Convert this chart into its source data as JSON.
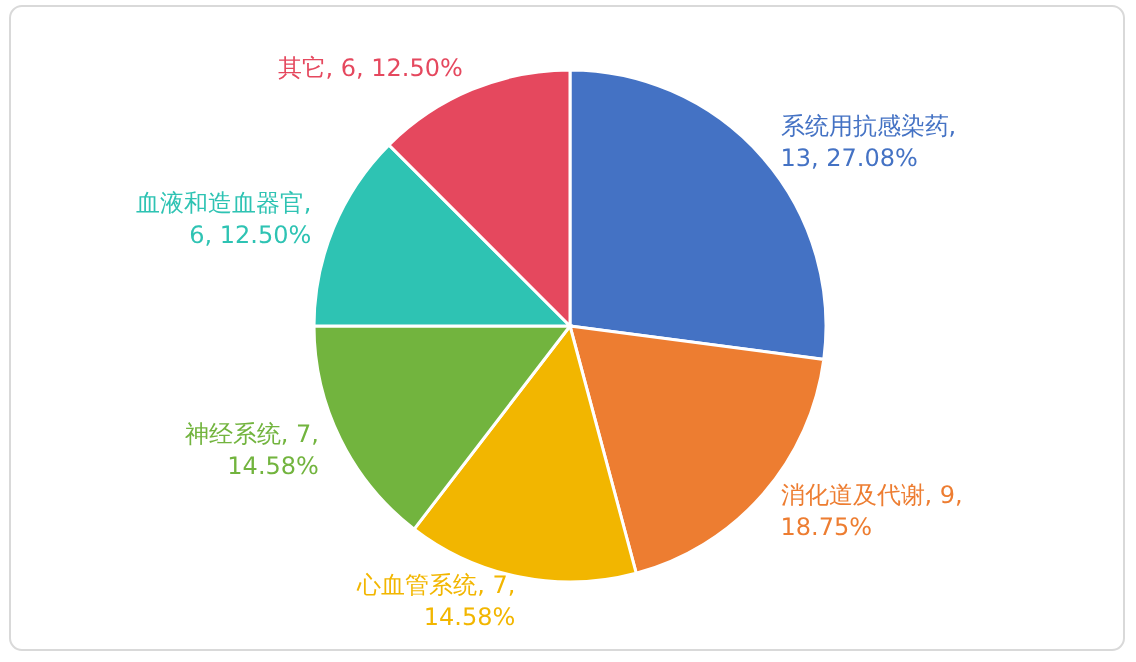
{
  "chart_data": {
    "type": "pie",
    "categories": [
      "系统用抗感染药",
      "消化道及代谢",
      "心血管系统",
      "神经系统",
      "血液和造血器官",
      "其它"
    ],
    "values": [
      13,
      9,
      7,
      7,
      6,
      6
    ],
    "colors": [
      "#4472c4",
      "#ed7d31",
      "#f2b600",
      "#72b43e",
      "#2ec3b3",
      "#e5485e"
    ],
    "value_labels": [
      ", 13, 27.08%",
      ", 9, 18.75%",
      ", 7, 14.58%",
      ", 7, 14.58%",
      ", 6, 12.50%",
      ", 6, 12.50%"
    ]
  }
}
